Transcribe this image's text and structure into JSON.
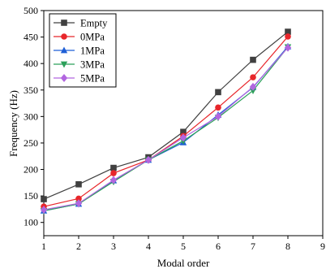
{
  "chart_data": {
    "type": "line",
    "xlabel": "Modal order",
    "ylabel": "Frequency (Hz)",
    "xlim": [
      1,
      9
    ],
    "ylim": [
      75,
      500
    ],
    "x_ticks": [
      1,
      2,
      3,
      4,
      5,
      6,
      7,
      8,
      9
    ],
    "y_ticks": [
      100,
      150,
      200,
      250,
      300,
      350,
      400,
      450,
      500
    ],
    "x": [
      1,
      2,
      3,
      4,
      5,
      6,
      7,
      8
    ],
    "legend_position": "top-left",
    "grid": false,
    "series": [
      {
        "name": "Empty",
        "color": "#404040",
        "marker": "square",
        "values": [
          144,
          172,
          203,
          223,
          271,
          346,
          407,
          460
        ]
      },
      {
        "name": "0MPa",
        "color": "#e8262b",
        "marker": "circle",
        "values": [
          130,
          145,
          193,
          218,
          263,
          317,
          374,
          451
        ]
      },
      {
        "name": "1MPa",
        "color": "#1f5fd6",
        "marker": "triangle-up",
        "values": [
          122,
          135,
          179,
          218,
          251,
          303,
          355,
          432
        ]
      },
      {
        "name": "3MPa",
        "color": "#2ca05a",
        "marker": "triangle-down",
        "values": [
          122,
          135,
          177,
          218,
          254,
          298,
          349,
          431
        ]
      },
      {
        "name": "5MPa",
        "color": "#b266e0",
        "marker": "diamond",
        "values": [
          124,
          136,
          180,
          218,
          260,
          300,
          356,
          430
        ]
      }
    ]
  }
}
